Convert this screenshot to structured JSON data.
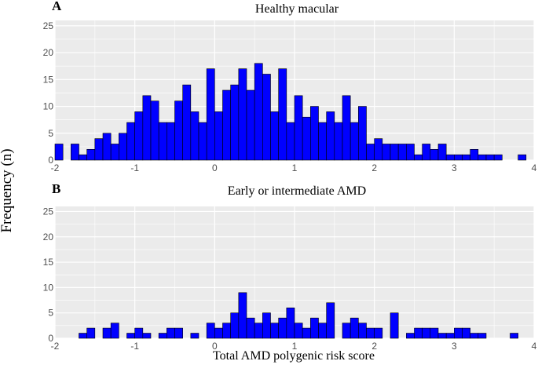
{
  "figure": {
    "ylabel": "Frequency (n)",
    "xlabel": "Total AMD polygenic risk score"
  },
  "colors": {
    "panel_background": "#EBEBEB",
    "grid": "#FFFFFF",
    "bar_fill": "#0000FF",
    "bar_edge": "#000000"
  },
  "chart_data": [
    {
      "type": "bar",
      "panel_letter": "A",
      "title": "Healthy macular",
      "xlabel": "Total AMD polygenic risk score",
      "ylabel": "Frequency (n)",
      "xlim": [
        -2,
        4
      ],
      "ylim": [
        0,
        26
      ],
      "xticks": [
        -2,
        -1,
        0,
        1,
        2,
        3,
        4
      ],
      "yticks": [
        0,
        5,
        10,
        15,
        20,
        25
      ],
      "bin_width": 0.1,
      "x": [
        -1.95,
        -1.85,
        -1.75,
        -1.65,
        -1.55,
        -1.45,
        -1.35,
        -1.25,
        -1.15,
        -1.05,
        -0.95,
        -0.85,
        -0.75,
        -0.65,
        -0.55,
        -0.45,
        -0.35,
        -0.25,
        -0.15,
        -0.05,
        0.05,
        0.15,
        0.25,
        0.35,
        0.45,
        0.55,
        0.65,
        0.75,
        0.85,
        0.95,
        1.05,
        1.15,
        1.25,
        1.35,
        1.45,
        1.55,
        1.65,
        1.75,
        1.85,
        1.95,
        2.05,
        2.15,
        2.25,
        2.35,
        2.45,
        2.55,
        2.65,
        2.75,
        2.85,
        2.95,
        3.05,
        3.15,
        3.25,
        3.35,
        3.45,
        3.55,
        3.65,
        3.75,
        3.85
      ],
      "values": [
        3,
        0,
        3,
        1,
        2,
        4,
        5,
        3,
        5,
        7,
        9,
        12,
        11,
        7,
        7,
        11,
        14,
        9,
        7,
        17,
        9,
        13,
        14,
        17,
        13,
        18,
        16,
        9,
        17,
        7,
        12,
        8,
        10,
        7,
        9,
        7,
        12,
        7,
        10,
        3,
        4,
        3,
        3,
        3,
        3,
        1,
        3,
        2,
        3,
        1,
        1,
        1,
        2,
        1,
        1,
        1,
        0,
        0,
        1
      ]
    },
    {
      "type": "bar",
      "panel_letter": "B",
      "title": "Early or intermediate AMD",
      "xlabel": "Total AMD polygenic risk score",
      "ylabel": "Frequency (n)",
      "xlim": [
        -2,
        4
      ],
      "ylim": [
        0,
        26
      ],
      "xticks": [
        -2,
        -1,
        0,
        1,
        2,
        3,
        4
      ],
      "yticks": [
        0,
        5,
        10,
        15,
        20,
        25
      ],
      "bin_width": 0.1,
      "x": [
        -1.95,
        -1.85,
        -1.75,
        -1.65,
        -1.55,
        -1.45,
        -1.35,
        -1.25,
        -1.15,
        -1.05,
        -0.95,
        -0.85,
        -0.75,
        -0.65,
        -0.55,
        -0.45,
        -0.35,
        -0.25,
        -0.15,
        -0.05,
        0.05,
        0.15,
        0.25,
        0.35,
        0.45,
        0.55,
        0.65,
        0.75,
        0.85,
        0.95,
        1.05,
        1.15,
        1.25,
        1.35,
        1.45,
        1.55,
        1.65,
        1.75,
        1.85,
        1.95,
        2.05,
        2.15,
        2.25,
        2.35,
        2.45,
        2.55,
        2.65,
        2.75,
        2.85,
        2.95,
        3.05,
        3.15,
        3.25,
        3.35,
        3.45,
        3.55,
        3.65,
        3.75,
        3.85
      ],
      "values": [
        0,
        0,
        0,
        1,
        2,
        0,
        2,
        3,
        0,
        1,
        2,
        1,
        0,
        1,
        2,
        2,
        0,
        1,
        0,
        3,
        2,
        3,
        5,
        9,
        4,
        3,
        5,
        3,
        4,
        6,
        3,
        2,
        4,
        3,
        7,
        0,
        3,
        4,
        3,
        2,
        2,
        0,
        5,
        0,
        1,
        2,
        2,
        2,
        1,
        1,
        2,
        2,
        1,
        1,
        0,
        0,
        0,
        1,
        0
      ]
    }
  ]
}
